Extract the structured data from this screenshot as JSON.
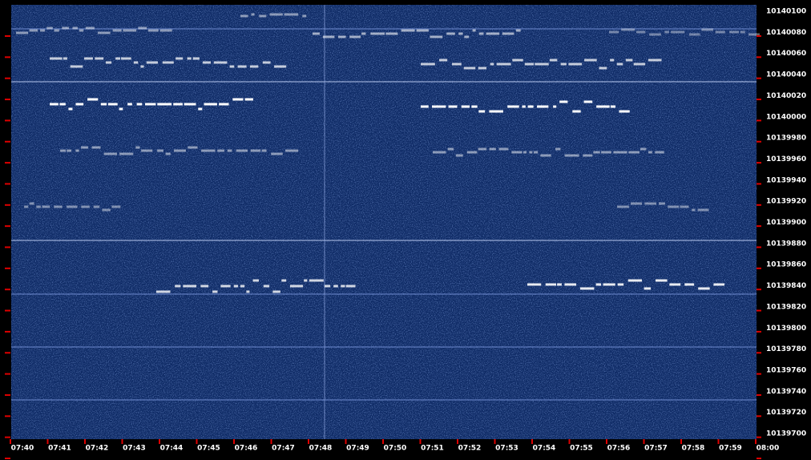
{
  "y_axis": {
    "labels": [
      "10140100",
      "10140080",
      "10140060",
      "10140040",
      "10140020",
      "10140000",
      "10139980",
      "10139960",
      "10139940",
      "10139920",
      "10139900",
      "10139880",
      "10139860",
      "10139840",
      "10139820",
      "10139800",
      "10139780",
      "10139760",
      "10139740",
      "10139720",
      "10139700"
    ]
  },
  "x_axis": {
    "labels": [
      "07:40",
      "07:41",
      "07:42",
      "07:43",
      "07:44",
      "07:45",
      "07:46",
      "07:47",
      "07:48",
      "07:49",
      "07:50",
      "07:51",
      "07:52",
      "07:53",
      "07:54",
      "07:55",
      "07:56",
      "07:57",
      "07:58",
      "07:59",
      "08:00"
    ]
  }
}
